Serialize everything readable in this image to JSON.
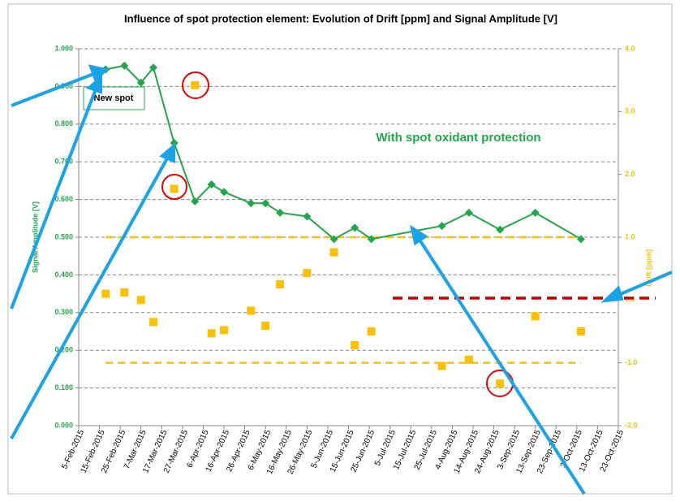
{
  "chart_data": {
    "type": "line",
    "title": "Influence of spot protection element: Evolution of Drift [ppm] and Signal Amplitude [V]",
    "y_label": "Signal Amplitude [V]",
    "y2_label": "Drift [ppm]",
    "annotations": [
      "New spot",
      "With spot oxidant protection"
    ],
    "x": [
      "2015-02-18",
      "2015-02-27",
      "2015-03-07",
      "2015-03-13",
      "2015-03-23",
      "2015-04-02",
      "2015-04-10",
      "2015-04-16",
      "2015-04-29",
      "2015-05-06",
      "2015-05-13",
      "2015-05-26",
      "2015-06-08",
      "2015-06-18",
      "2015-06-26",
      "2015-07-30",
      "2015-08-12",
      "2015-08-27",
      "2015-09-13",
      "2015-10-05"
    ],
    "series": [
      {
        "name": "Signal Amplitude",
        "color": "#1fa84a",
        "axis": "y",
        "values": [
          0.945,
          0.955,
          0.91,
          0.95,
          0.75,
          0.595,
          0.64,
          0.62,
          0.59,
          0.59,
          0.565,
          0.555,
          0.495,
          0.525,
          0.495,
          0.53,
          0.565,
          0.52,
          0.565,
          0.495
        ]
      },
      {
        "name": "Drift",
        "color": "#ffc000",
        "axis": "y2",
        "marker_only": true,
        "values": [
          0.1,
          0.12,
          0.0,
          -0.35,
          1.77,
          3.42,
          -0.53,
          -0.48,
          -0.17,
          -0.41,
          0.25,
          0.43,
          0.76,
          -0.72,
          -0.5,
          -1.05,
          -0.95,
          -1.33,
          -0.26,
          -0.5
        ]
      }
    ],
    "reference_lines": [
      {
        "axis": "y2",
        "value": 1.0,
        "color": "#ffc000"
      },
      {
        "axis": "y2",
        "value": -1.0,
        "color": "#ffc000"
      },
      {
        "axis": "y2",
        "value": 0.03,
        "color": "#c00000"
      }
    ],
    "xlim": [
      "2015-02-05",
      "2015-10-23"
    ],
    "xticks": [
      {
        "value": "2015-02-05",
        "label": "5-Feb-2015"
      },
      {
        "value": "2015-02-15",
        "label": "15-Feb-2015"
      },
      {
        "value": "2015-02-25",
        "label": "25-Feb-2015"
      },
      {
        "value": "2015-03-07",
        "label": "7-Mar-2015"
      },
      {
        "value": "2015-03-17",
        "label": "17-Mar-2015"
      },
      {
        "value": "2015-03-27",
        "label": "27-Mar-2015"
      },
      {
        "value": "2015-04-06",
        "label": "6-Apr-2015"
      },
      {
        "value": "2015-04-16",
        "label": "16-Apr-2015"
      },
      {
        "value": "2015-04-26",
        "label": "26-Apr-2015"
      },
      {
        "value": "2015-05-06",
        "label": "6-May-2015"
      },
      {
        "value": "2015-05-16",
        "label": "16-May-2015"
      },
      {
        "value": "2015-05-26",
        "label": "26-May-2015"
      },
      {
        "value": "2015-06-05",
        "label": "5-Jun-2015"
      },
      {
        "value": "2015-06-15",
        "label": "15-Jun-2015"
      },
      {
        "value": "2015-06-25",
        "label": "25-Jun-2015"
      },
      {
        "value": "2015-07-05",
        "label": "5-Jul-2015"
      },
      {
        "value": "2015-07-15",
        "label": "15-Jul-2015"
      },
      {
        "value": "2015-07-25",
        "label": "25-Jul-2015"
      },
      {
        "value": "2015-08-04",
        "label": "4-Aug-2015"
      },
      {
        "value": "2015-08-14",
        "label": "14-Aug-2015"
      },
      {
        "value": "2015-08-24",
        "label": "24-Aug-2015"
      },
      {
        "value": "2015-09-03",
        "label": "3-Sep-2015"
      },
      {
        "value": "2015-09-13",
        "label": "13-Sep-2015"
      },
      {
        "value": "2015-09-23",
        "label": "23-Sep-2015"
      },
      {
        "value": "2015-10-03",
        "label": "3-Oct-2015"
      },
      {
        "value": "2015-10-13",
        "label": "13-Oct-2015"
      },
      {
        "value": "2015-10-23",
        "label": "23-Oct-2015"
      }
    ],
    "ylim": [
      0,
      1
    ],
    "yticks": [
      {
        "value": 0,
        "label": "0.000"
      },
      {
        "value": 0.1,
        "label": "0.100"
      },
      {
        "value": 0.2,
        "label": "0.200"
      },
      {
        "value": 0.3,
        "label": "0.300"
      },
      {
        "value": 0.4,
        "label": "0.400"
      },
      {
        "value": 0.5,
        "label": "0.500"
      },
      {
        "value": 0.6,
        "label": "0.600"
      },
      {
        "value": 0.7,
        "label": "0.700"
      },
      {
        "value": 0.8,
        "label": "0.800"
      },
      {
        "value": 0.9,
        "label": "0.900"
      },
      {
        "value": 1,
        "label": "1.000"
      }
    ],
    "y2lim": [
      -2,
      4
    ],
    "y2ticks": [
      {
        "value": -2,
        "label": "-2.0"
      },
      {
        "value": -1,
        "label": "-1.0"
      },
      {
        "value": 0,
        "label": "0.0"
      },
      {
        "value": 1,
        "label": "1.0"
      },
      {
        "value": 2,
        "label": "2.0"
      },
      {
        "value": 3,
        "label": "3.0"
      },
      {
        "value": 4,
        "label": "4.0"
      }
    ],
    "grid": true
  }
}
